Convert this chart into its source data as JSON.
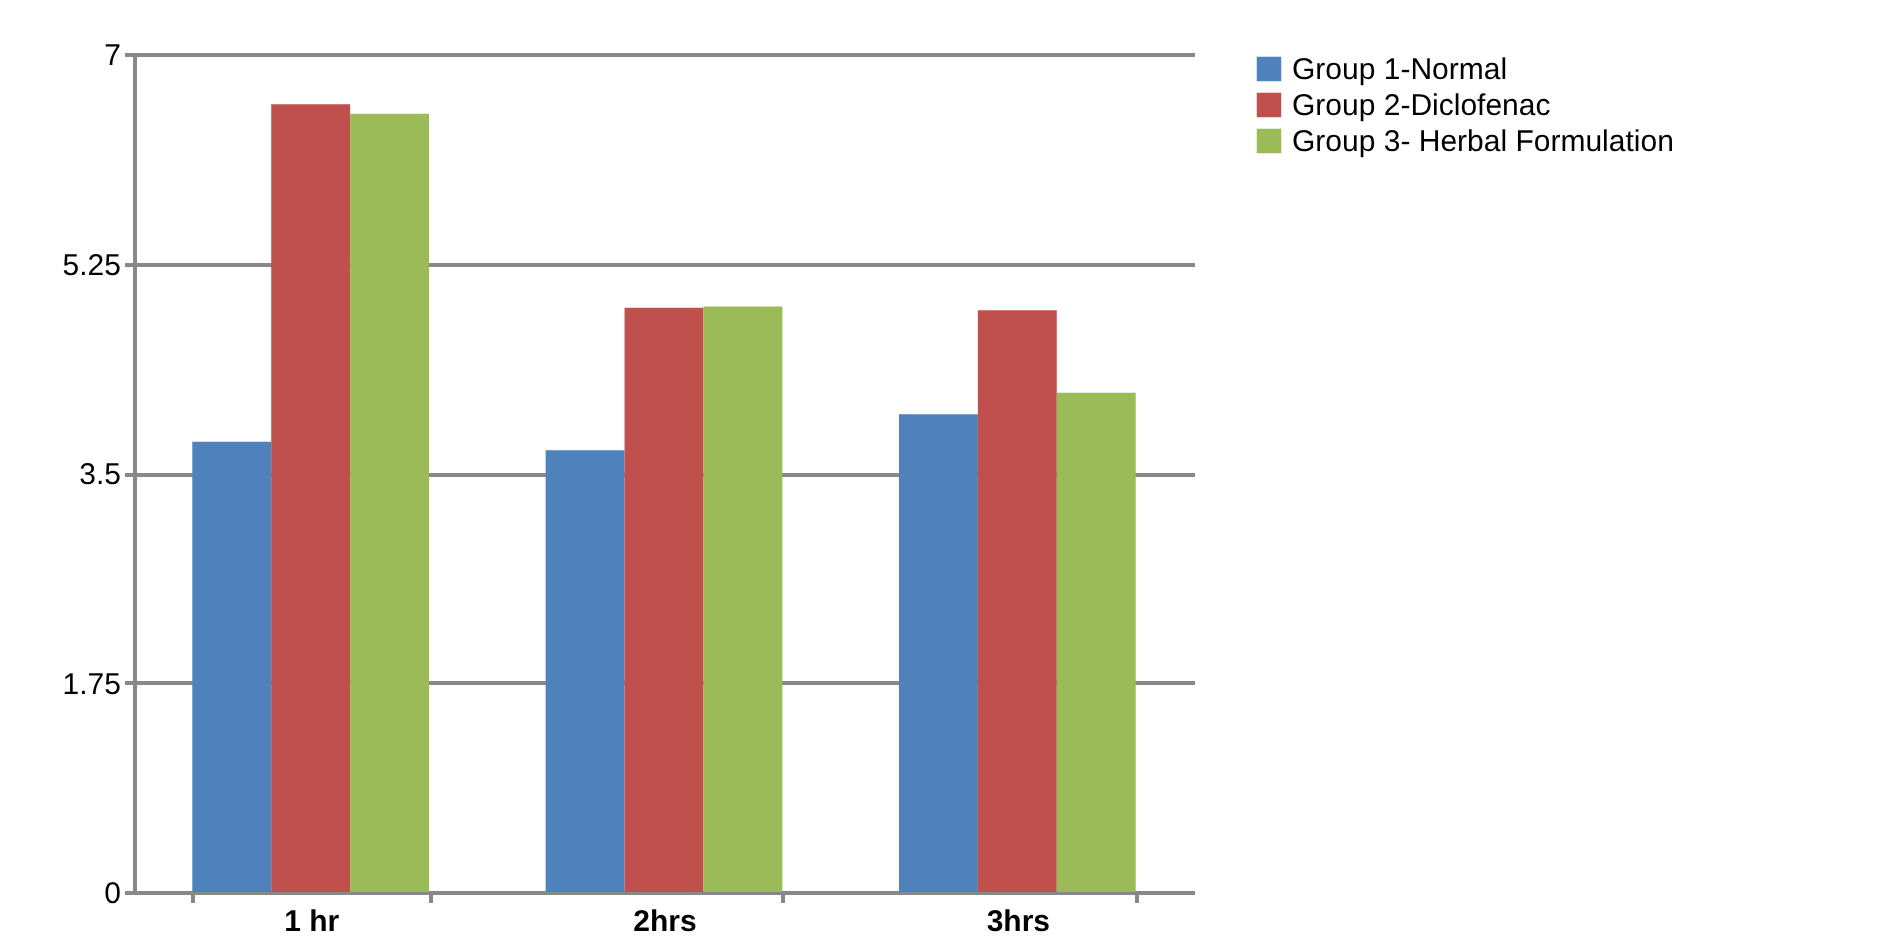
{
  "chart_data": {
    "type": "bar",
    "categories": [
      "1 hr",
      "2hrs",
      "3hrs"
    ],
    "series": [
      {
        "name": "Group 1-Normal",
        "color": "#4f81bd",
        "values": [
          3.76,
          3.69,
          3.99
        ]
      },
      {
        "name": "Group 2-Diclofenac",
        "color": "#c0504d",
        "values": [
          6.58,
          4.88,
          4.86
        ]
      },
      {
        "name": "Group 3- Herbal Formulation",
        "color": "#9bbb59",
        "values": [
          6.5,
          4.89,
          4.17
        ]
      }
    ],
    "ylim": [
      0,
      7
    ],
    "yticks": [
      0,
      1.75,
      3.5,
      5.25,
      7
    ],
    "grid": "y",
    "legend": "right"
  }
}
